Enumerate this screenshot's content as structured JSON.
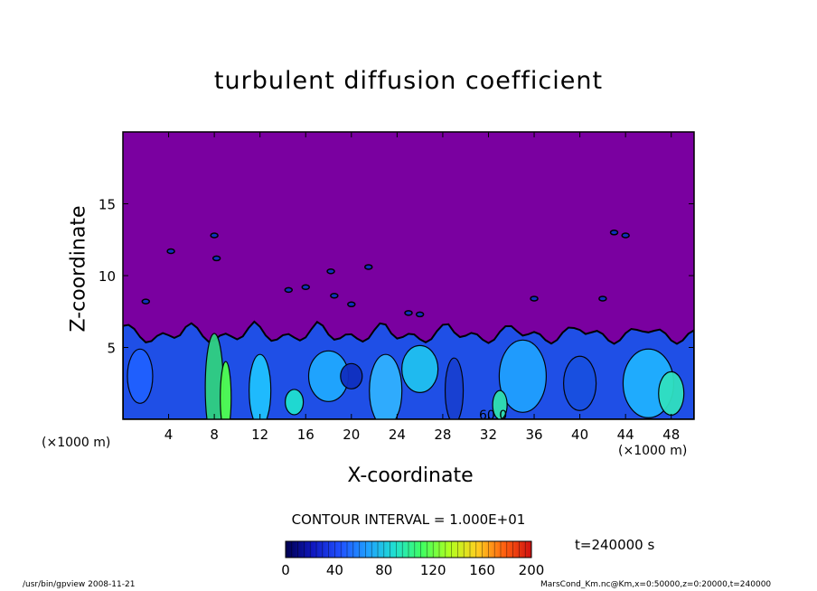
{
  "chart_data": {
    "type": "heatmap",
    "title": "turbulent diffusion coefficient",
    "xlabel": "X-coordinate",
    "ylabel": "Z-coordinate",
    "x_unit": "(×1000 m)",
    "y_unit": "(×1000 m)",
    "xlim": [
      0,
      50
    ],
    "ylim": [
      0,
      20
    ],
    "x_ticks": [
      "4",
      "8",
      "12",
      "16",
      "20",
      "24",
      "28",
      "32",
      "36",
      "40",
      "44",
      "48"
    ],
    "y_ticks": [
      "5",
      "10",
      "15"
    ],
    "x_tick_values": [
      4,
      8,
      12,
      16,
      20,
      24,
      28,
      32,
      36,
      40,
      44,
      48
    ],
    "y_tick_values": [
      5,
      10,
      15
    ],
    "contour_interval": "CONTOUR INTERVAL = 1.000E+01",
    "contour_label": "60.0",
    "time_label": "t=240000 s",
    "colorbar": {
      "min": 0,
      "max": 200,
      "ticks": [
        "0",
        "40",
        "80",
        "120",
        "160",
        "200"
      ],
      "tick_values": [
        0,
        40,
        80,
        120,
        160,
        200
      ],
      "colors": [
        "#000050",
        "#1018c0",
        "#2050ff",
        "#20a0ff",
        "#20e0d0",
        "#40ff60",
        "#b0ff20",
        "#ffd020",
        "#ff6010",
        "#d01010"
      ]
    },
    "background_value_color": "#7a00a0",
    "boundary_layer_top_km": 6.5
  },
  "footer": {
    "left": "/usr/bin/gpview   2008-11-21",
    "right": "MarsCond_Km.nc@Km,x=0:50000,z=0:20000,t=240000"
  }
}
